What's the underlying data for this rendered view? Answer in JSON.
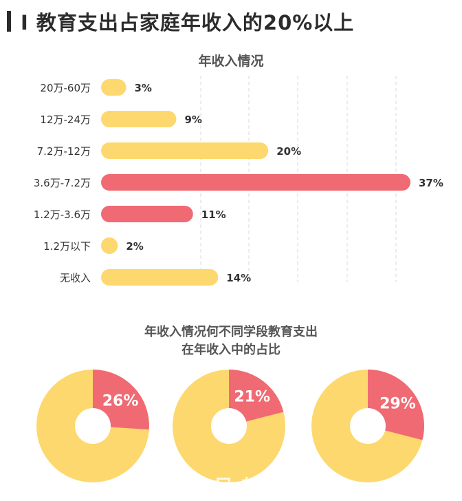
{
  "headline": "I 教育支出占家庭年收入的20%以上",
  "chart_data": [
    {
      "type": "bar",
      "orientation": "horizontal",
      "title": "年收入情况",
      "categories": [
        "20万-60万",
        "12万-24万",
        "7.2万-12万",
        "3.6万-7.2万",
        "1.2万-3.6万",
        "1.2万以下",
        "无收入"
      ],
      "values": [
        3,
        9,
        20,
        37,
        11,
        2,
        14
      ],
      "value_labels": [
        "3%",
        "9%",
        "20%",
        "37%",
        "11%",
        "2%",
        "14%"
      ],
      "highlighted": [
        false,
        false,
        false,
        true,
        true,
        false,
        false
      ],
      "colors": {
        "normal": "#FDD86E",
        "highlight": "#F06A73"
      },
      "xlim": [
        0,
        37
      ],
      "grid": "vertical dashed lines"
    },
    {
      "type": "pie",
      "title": "年收入情况何不同学段教育支出\n在年收入中的占比",
      "title_lines": [
        "年收入情况何不同学段教育支出",
        "在年收入中的占比"
      ],
      "donuts": [
        {
          "value": 26,
          "label": "26%"
        },
        {
          "value": 21,
          "label": "21%"
        },
        {
          "value": 29,
          "label": "29%"
        }
      ],
      "colors": {
        "share": "#F06A73",
        "rest": "#FDD86E"
      }
    }
  ],
  "watermark": "作号 起帐现"
}
